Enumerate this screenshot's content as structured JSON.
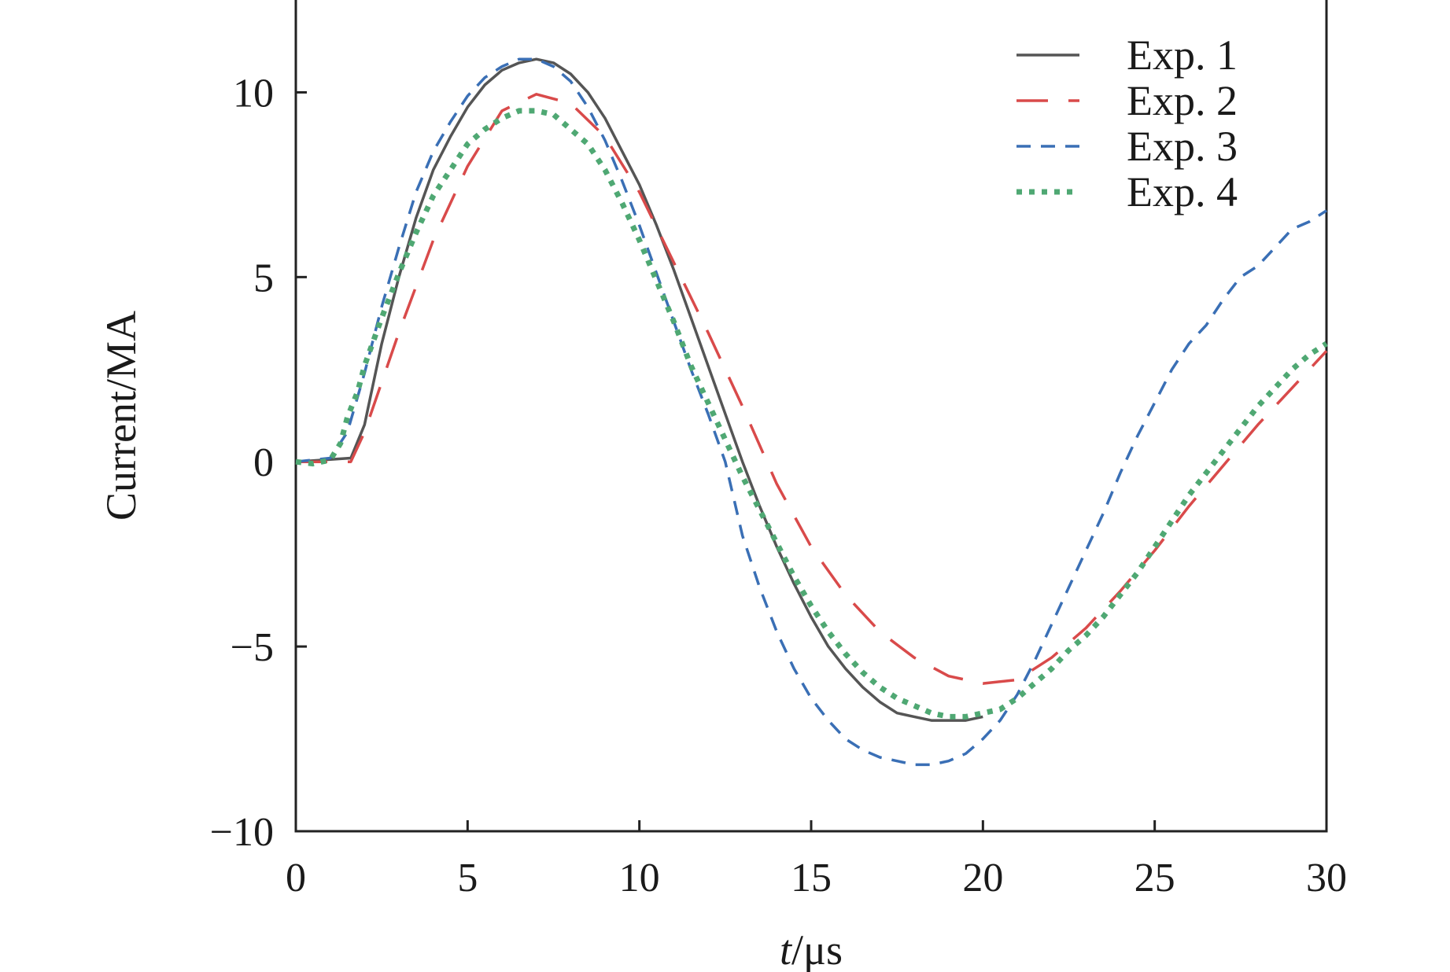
{
  "chart_data": {
    "type": "line",
    "title": "",
    "xlabel_italic": "t",
    "xlabel_unit": "/μs",
    "ylabel": "Current/MA",
    "xlim": [
      0,
      30
    ],
    "ylim": [
      -10,
      12.5
    ],
    "grid": false,
    "legend_position": "top-right",
    "x_ticks": [
      0,
      5,
      10,
      15,
      20,
      25,
      30
    ],
    "x_tick_labels": [
      "0",
      "5",
      "10",
      "15",
      "20",
      "25",
      "30"
    ],
    "y_ticks": [
      -10,
      -5,
      0,
      5,
      10
    ],
    "y_tick_labels": [
      "−10",
      "−5",
      "0",
      "5",
      "10"
    ],
    "series": [
      {
        "name": "Exp. 1",
        "color": "#555555",
        "style": "solid",
        "x": [
          0,
          1.6,
          2,
          2.5,
          3,
          3.5,
          4,
          4.5,
          5,
          5.5,
          6,
          6.5,
          7,
          7.5,
          8,
          8.5,
          9,
          9.5,
          10,
          10.5,
          11,
          11.5,
          12,
          12.5,
          13,
          13.5,
          14,
          14.5,
          15,
          15.5,
          16,
          16.5,
          17,
          17.5,
          18,
          18.5,
          19,
          19.5,
          20
        ],
        "values": [
          0,
          0.1,
          1.0,
          3.2,
          5.0,
          6.6,
          7.9,
          8.8,
          9.6,
          10.2,
          10.6,
          10.8,
          10.9,
          10.8,
          10.5,
          10.0,
          9.3,
          8.4,
          7.5,
          6.4,
          5.2,
          3.9,
          2.6,
          1.3,
          0.0,
          -1.2,
          -2.3,
          -3.3,
          -4.2,
          -5.0,
          -5.6,
          -6.1,
          -6.5,
          -6.8,
          -6.9,
          -7.0,
          -7.0,
          -7.0,
          -6.9
        ]
      },
      {
        "name": "Exp. 2",
        "color": "#d94a4a",
        "style": "long-dash",
        "x": [
          0,
          1.6,
          2,
          3,
          4,
          5,
          6,
          7,
          8,
          9,
          10,
          11,
          12,
          13,
          14,
          15,
          16,
          17,
          18,
          19,
          20,
          21,
          22,
          23,
          24,
          25,
          26,
          27,
          28,
          29,
          30
        ],
        "values": [
          0,
          0.0,
          0.8,
          3.5,
          6.0,
          8.0,
          9.5,
          9.95,
          9.7,
          8.8,
          7.3,
          5.4,
          3.5,
          1.5,
          -0.6,
          -2.3,
          -3.6,
          -4.6,
          -5.3,
          -5.8,
          -6.0,
          -5.9,
          -5.3,
          -4.5,
          -3.5,
          -2.4,
          -1.2,
          -0.1,
          1.0,
          2.0,
          3.0
        ]
      },
      {
        "name": "Exp. 3",
        "color": "#3a6fb5",
        "style": "short-dash",
        "x": [
          0,
          1,
          1.5,
          2,
          2.5,
          3,
          3.5,
          4,
          4.5,
          5,
          5.5,
          6,
          6.5,
          7,
          7.5,
          8,
          8.5,
          9,
          9.5,
          10,
          10.5,
          11,
          11.5,
          12,
          12.5,
          13,
          13.5,
          14,
          14.5,
          15,
          15.5,
          16,
          16.5,
          17,
          17.5,
          18,
          18.5,
          19,
          19.5,
          20,
          20.5,
          21,
          21.5,
          22,
          22.5,
          23,
          23.5,
          24,
          24.5,
          25,
          25.5,
          26,
          26.5,
          27,
          27.5,
          28,
          28.5,
          29,
          29.5,
          30
        ],
        "values": [
          0,
          0.1,
          0.8,
          2.4,
          4.2,
          5.8,
          7.3,
          8.4,
          9.2,
          9.9,
          10.4,
          10.7,
          10.9,
          10.9,
          10.7,
          10.3,
          9.6,
          8.7,
          7.6,
          6.4,
          5.1,
          3.8,
          2.5,
          1.3,
          0.0,
          -2.0,
          -3.4,
          -4.6,
          -5.6,
          -6.4,
          -7.0,
          -7.5,
          -7.8,
          -8.0,
          -8.1,
          -8.2,
          -8.2,
          -8.1,
          -7.9,
          -7.5,
          -7.0,
          -6.3,
          -5.4,
          -4.4,
          -3.4,
          -2.4,
          -1.4,
          -0.3,
          0.7,
          1.6,
          2.5,
          3.2,
          3.7,
          4.4,
          5.0,
          5.3,
          5.8,
          6.3,
          6.5,
          6.8
        ]
      },
      {
        "name": "Exp. 4",
        "color": "#4fa873",
        "style": "dotted",
        "x": [
          0,
          0.5,
          1,
          1.3,
          1.5,
          1.8,
          2,
          2.5,
          3,
          3.5,
          4,
          4.5,
          5,
          5.5,
          6,
          6.5,
          7,
          7.5,
          8,
          8.5,
          9,
          9.5,
          10,
          10.5,
          11,
          11.5,
          12,
          12.5,
          13,
          13.5,
          14,
          14.5,
          15,
          15.5,
          16,
          16.5,
          17,
          17.5,
          18,
          18.5,
          19,
          19.5,
          20,
          20.5,
          21,
          21.5,
          22,
          22.5,
          23,
          23.5,
          24,
          24.5,
          25,
          25.5,
          26,
          26.5,
          27,
          27.5,
          28,
          28.5,
          29,
          29.5,
          30
        ],
        "values": [
          0,
          -0.05,
          0.05,
          0.5,
          1.2,
          1.9,
          2.6,
          3.9,
          5.1,
          6.2,
          7.2,
          7.9,
          8.6,
          9.0,
          9.3,
          9.5,
          9.5,
          9.4,
          9.0,
          8.6,
          7.9,
          7.0,
          6.0,
          4.9,
          3.8,
          2.6,
          1.6,
          0.6,
          -0.4,
          -1.3,
          -2.2,
          -3.1,
          -3.9,
          -4.6,
          -5.2,
          -5.7,
          -6.1,
          -6.4,
          -6.6,
          -6.8,
          -6.9,
          -6.9,
          -6.8,
          -6.7,
          -6.4,
          -6.0,
          -5.6,
          -5.1,
          -4.7,
          -4.2,
          -3.6,
          -3.0,
          -2.3,
          -1.6,
          -0.9,
          -0.3,
          0.3,
          0.9,
          1.5,
          2.0,
          2.5,
          2.9,
          3.2
        ]
      }
    ]
  }
}
